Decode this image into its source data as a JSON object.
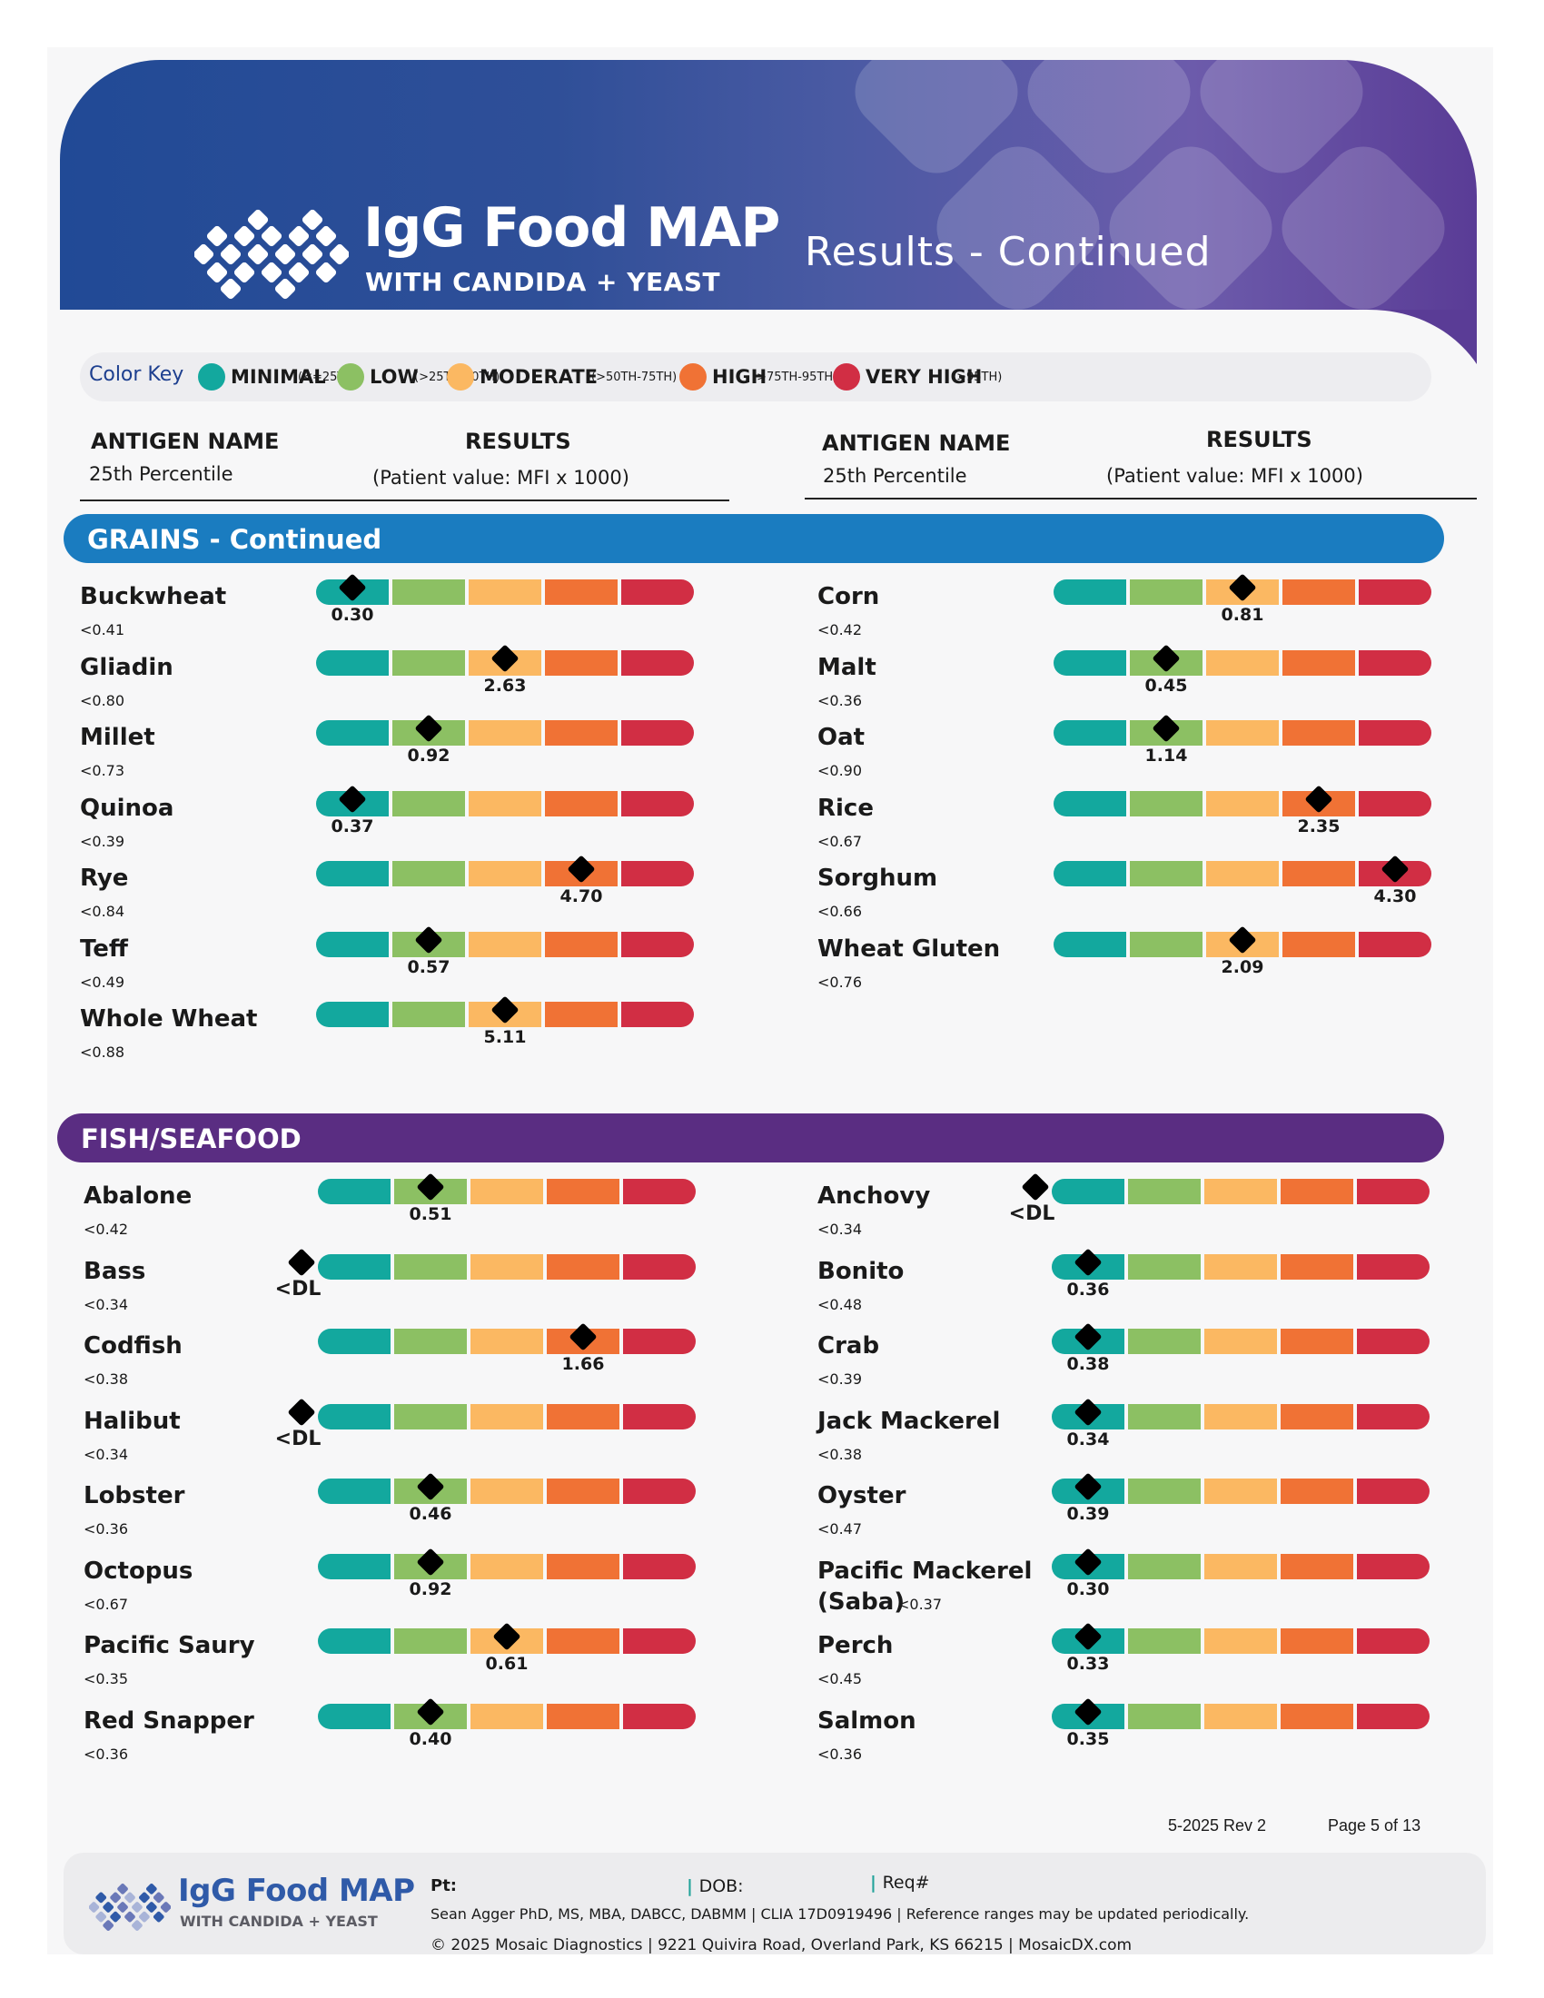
{
  "header": {
    "logo_title": "IgG Food MAP",
    "logo_subtitle": "WITH CANDIDA + YEAST",
    "page_title": "Results - Continued"
  },
  "color_key": {
    "label": "Color Key",
    "items": [
      {
        "name": "MINIMAL",
        "range": "(<=25TH)",
        "color": "#13a89e"
      },
      {
        "name": "LOW",
        "range": "(>25TH-50TH)",
        "color": "#8cc063"
      },
      {
        "name": "MODERATE",
        "range": "(>50TH-75TH)",
        "color": "#fbb862"
      },
      {
        "name": "HIGH",
        "range": "(>75TH-95TH)",
        "color": "#f07235"
      },
      {
        "name": "VERY HIGH",
        "range": "(>95TH)",
        "color": "#d12e44"
      }
    ]
  },
  "columns": {
    "antigen_name": "ANTIGEN NAME",
    "percentile": "25th Percentile",
    "results": "RESULTS",
    "results_sub": "(Patient value: MFI x 1000)"
  },
  "sections": [
    {
      "title": "GRAINS - Continued",
      "color": "#1a7cc0",
      "left": [
        {
          "name": "Buckwheat",
          "ref": "<0.41",
          "value": "0.30",
          "level": 0
        },
        {
          "name": "Gliadin",
          "ref": "<0.80",
          "value": "2.63",
          "level": 2
        },
        {
          "name": "Millet",
          "ref": "<0.73",
          "value": "0.92",
          "level": 1
        },
        {
          "name": "Quinoa",
          "ref": "<0.39",
          "value": "0.37",
          "level": 0
        },
        {
          "name": "Rye",
          "ref": "<0.84",
          "value": "4.70",
          "level": 3
        },
        {
          "name": "Teff",
          "ref": "<0.49",
          "value": "0.57",
          "level": 1
        },
        {
          "name": "Whole Wheat",
          "ref": "<0.88",
          "value": "5.11",
          "level": 2
        }
      ],
      "right": [
        {
          "name": "Corn",
          "ref": "<0.42",
          "value": "0.81",
          "level": 2
        },
        {
          "name": "Malt",
          "ref": "<0.36",
          "value": "0.45",
          "level": 1
        },
        {
          "name": "Oat",
          "ref": "<0.90",
          "value": "1.14",
          "level": 1
        },
        {
          "name": "Rice",
          "ref": "<0.67",
          "value": "2.35",
          "level": 3
        },
        {
          "name": "Sorghum",
          "ref": "<0.66",
          "value": "4.30",
          "level": 4
        },
        {
          "name": "Wheat Gluten",
          "ref": "<0.76",
          "value": "2.09",
          "level": 2
        }
      ]
    },
    {
      "title": "FISH/SEAFOOD",
      "color": "#5a2d82",
      "left": [
        {
          "name": "Abalone",
          "ref": "<0.42",
          "value": "0.51",
          "level": 1
        },
        {
          "name": "Bass",
          "ref": "<0.34",
          "value": "<DL",
          "level": -1
        },
        {
          "name": "Codfish",
          "ref": "<0.38",
          "value": "1.66",
          "level": 3
        },
        {
          "name": "Halibut",
          "ref": "<0.34",
          "value": "<DL",
          "level": -1
        },
        {
          "name": "Lobster",
          "ref": "<0.36",
          "value": "0.46",
          "level": 1
        },
        {
          "name": "Octopus",
          "ref": "<0.67",
          "value": "0.92",
          "level": 1
        },
        {
          "name": "Pacific Saury",
          "ref": "<0.35",
          "value": "0.61",
          "level": 2
        },
        {
          "name": "Red Snapper",
          "ref": "<0.36",
          "value": "0.40",
          "level": 1
        }
      ],
      "right": [
        {
          "name": "Anchovy",
          "ref": "<0.34",
          "value": "<DL",
          "level": -1
        },
        {
          "name": "Bonito",
          "ref": "<0.48",
          "value": "0.36",
          "level": 0
        },
        {
          "name": "Crab",
          "ref": "<0.39",
          "value": "0.38",
          "level": 0
        },
        {
          "name": "Jack Mackerel",
          "ref": "<0.38",
          "value": "0.34",
          "level": 0
        },
        {
          "name": "Oyster",
          "ref": "<0.47",
          "value": "0.39",
          "level": 0
        },
        {
          "name": "Pacific Mackerel",
          "name2": "(Saba)",
          "ref": "<0.37",
          "value": "0.30",
          "level": 0
        },
        {
          "name": "Perch",
          "ref": "<0.45",
          "value": "0.33",
          "level": 0
        },
        {
          "name": "Salmon",
          "ref": "<0.36",
          "value": "0.35",
          "level": 0
        }
      ]
    }
  ],
  "footer": {
    "revision": "5-2025 Rev 2",
    "page": "Page 5 of 13",
    "logo_title": "IgG Food MAP",
    "logo_subtitle": "WITH CANDIDA + YEAST",
    "pt_label": "Pt:",
    "dob_label": "DOB:",
    "req_label": "Req#",
    "line2": "Sean Agger PhD, MS, MBA, DABCC, DABMM   | CLIA 17D0919496   |  Reference ranges may be updated periodically.",
    "line3": "© 2025 Mosaic Diagnostics | 9221 Quivira Road, Overland Park, KS 66215 | MosaicDX.com"
  }
}
